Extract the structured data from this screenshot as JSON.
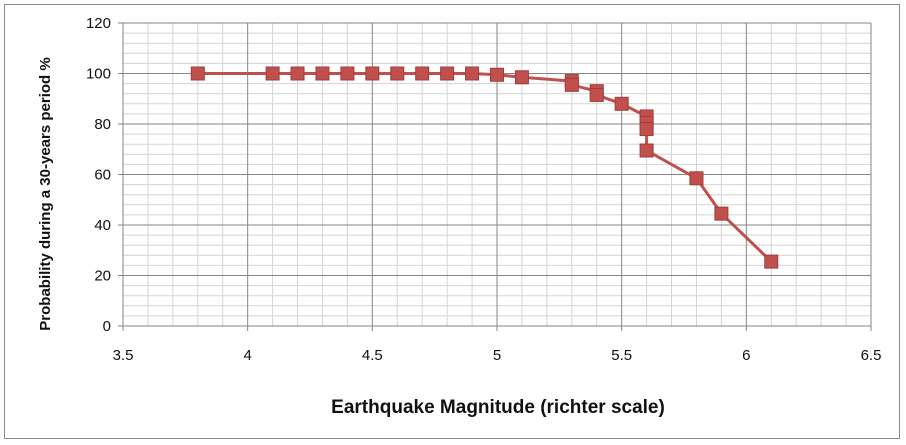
{
  "chart_data": {
    "type": "line",
    "title": "",
    "xlabel": "Earthquake Magnitude (richter scale)",
    "ylabel": "Probability  during a 30-years period %",
    "xlim": [
      3.5,
      6.5
    ],
    "ylim": [
      0,
      120
    ],
    "x_major_step": 0.5,
    "x_minor_step": 0.1,
    "y_major_step": 20,
    "y_minor_step": 4,
    "grid": true,
    "legend": "none",
    "marker": "square",
    "x_tick_labels": [
      "3.5",
      "4",
      "4.5",
      "5",
      "5.5",
      "6",
      "6.5"
    ],
    "y_tick_labels": [
      "0",
      "20",
      "40",
      "60",
      "80",
      "100",
      "120"
    ],
    "series": [
      {
        "color": "#c0504d",
        "x": [
          3.8,
          4.1,
          4.2,
          4.3,
          4.4,
          4.5,
          4.6,
          4.7,
          4.8,
          4.9,
          5.0,
          5.1,
          5.3,
          5.3,
          5.4,
          5.4,
          5.5,
          5.6,
          5.6,
          5.6,
          5.6,
          5.8,
          5.9,
          6.1
        ],
        "y": [
          100,
          100,
          100,
          100,
          100,
          100,
          100,
          100,
          100,
          100,
          99.5,
          98.5,
          97,
          95.5,
          93,
          91.5,
          88,
          83,
          80.5,
          78,
          69.5,
          58.5,
          44.5,
          25.5
        ]
      }
    ]
  }
}
